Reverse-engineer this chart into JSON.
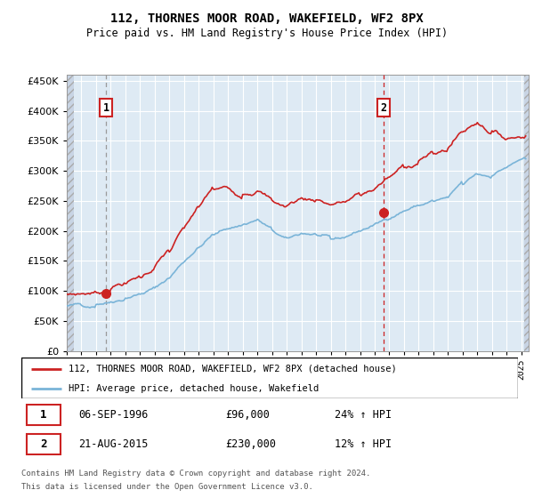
{
  "title": "112, THORNES MOOR ROAD, WAKEFIELD, WF2 8PX",
  "subtitle": "Price paid vs. HM Land Registry's House Price Index (HPI)",
  "ylabel_ticks": [
    0,
    50000,
    100000,
    150000,
    200000,
    250000,
    300000,
    350000,
    400000,
    450000
  ],
  "ylim": [
    0,
    460000
  ],
  "xlim_start": 1994.0,
  "xlim_end": 2025.5,
  "sale1_x": 1996.67,
  "sale1_y": 96000,
  "sale2_x": 2015.63,
  "sale2_y": 230000,
  "sale1_label": "1",
  "sale2_label": "2",
  "hpi_color": "#7ab4d8",
  "price_color": "#cc2222",
  "vline1_color": "#999999",
  "vline2_color": "#cc2222",
  "hatch_color": "#c8d8e8",
  "bg_color": "#ddeeff",
  "legend_label1": "112, THORNES MOOR ROAD, WAKEFIELD, WF2 8PX (detached house)",
  "legend_label2": "HPI: Average price, detached house, Wakefield",
  "table_row1": [
    "1",
    "06-SEP-1996",
    "£96,000",
    "24% ↑ HPI"
  ],
  "table_row2": [
    "2",
    "21-AUG-2015",
    "£230,000",
    "12% ↑ HPI"
  ],
  "footer1": "Contains HM Land Registry data © Crown copyright and database right 2024.",
  "footer2": "This data is licensed under the Open Government Licence v3.0."
}
